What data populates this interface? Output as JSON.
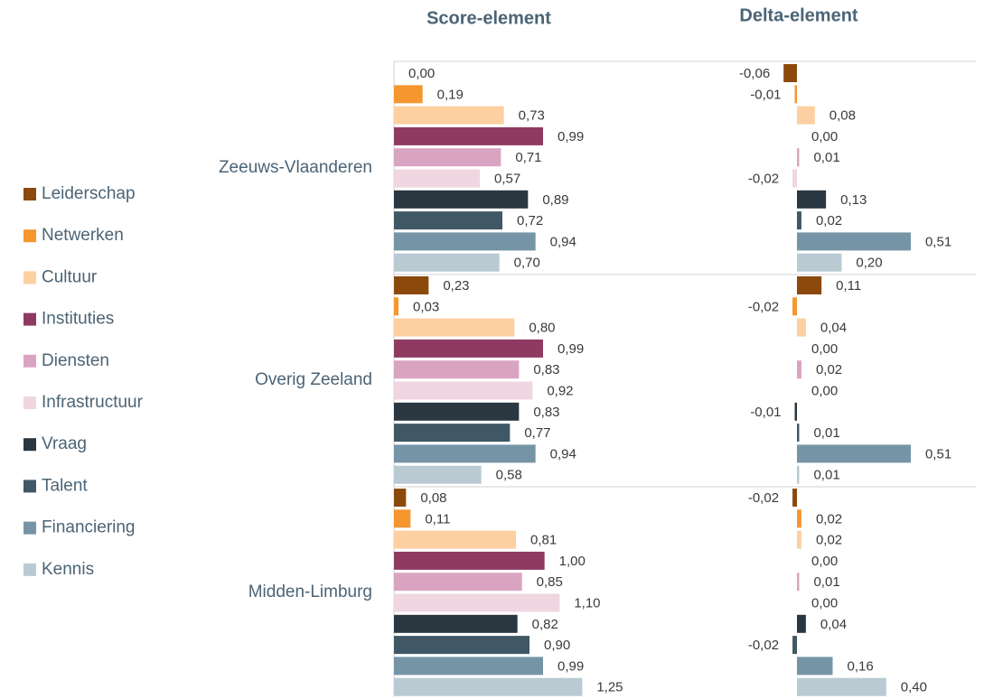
{
  "chart_data": [
    {
      "type": "bar",
      "title": "Score-element",
      "orientation": "horizontal",
      "categories": [
        "Zeeuws-Vlaanderen",
        "Overig Zeeland",
        "Midden-Limburg"
      ],
      "xlim": [
        0,
        1.5
      ],
      "series": [
        {
          "name": "Leiderschap",
          "color": "#8b4a0c",
          "values": [
            0.0,
            0.23,
            0.08
          ],
          "value_labels": [
            "0,00",
            "0,23",
            "0,08"
          ]
        },
        {
          "name": "Netwerken",
          "color": "#f5962f",
          "values": [
            0.19,
            0.03,
            0.11
          ],
          "value_labels": [
            "0,19",
            "0,03",
            "0,11"
          ]
        },
        {
          "name": "Cultuur",
          "color": "#fdd0a2",
          "values": [
            0.73,
            0.8,
            0.81
          ],
          "value_labels": [
            "0,73",
            "0,80",
            "0,81"
          ]
        },
        {
          "name": "Instituties",
          "color": "#8e3a62",
          "values": [
            0.99,
            0.99,
            1.0
          ],
          "value_labels": [
            "0,99",
            "0,99",
            "1,00"
          ]
        },
        {
          "name": "Diensten",
          "color": "#d9a4c2",
          "values": [
            0.71,
            0.83,
            0.85
          ],
          "value_labels": [
            "0,71",
            "0,83",
            "0,85"
          ]
        },
        {
          "name": "Infrastructuur",
          "color": "#f0d6e0",
          "values": [
            0.57,
            0.92,
            1.1
          ],
          "value_labels": [
            "0,57",
            "0,92",
            "1,10"
          ]
        },
        {
          "name": "Vraag",
          "color": "#2a3640",
          "values": [
            0.89,
            0.83,
            0.82
          ],
          "value_labels": [
            "0,89",
            "0,83",
            "0,82"
          ]
        },
        {
          "name": "Talent",
          "color": "#405866",
          "values": [
            0.72,
            0.77,
            0.9
          ],
          "value_labels": [
            "0,72",
            "0,77",
            "0,90"
          ]
        },
        {
          "name": "Financiering",
          "color": "#7595a6",
          "values": [
            0.94,
            0.94,
            0.99
          ],
          "value_labels": [
            "0,94",
            "0,94",
            "0,99"
          ]
        },
        {
          "name": "Kennis",
          "color": "#b9cad3",
          "values": [
            0.7,
            0.58,
            1.25
          ],
          "value_labels": [
            "0,70",
            "0,58",
            "1,25"
          ]
        }
      ]
    },
    {
      "type": "bar",
      "title": "Delta-element",
      "orientation": "horizontal",
      "xlim": [
        -0.2,
        0.8
      ],
      "series": [
        {
          "values": [
            -0.06,
            0.11,
            -0.02
          ],
          "value_labels": [
            "-0,06",
            "0,11",
            "-0,02"
          ]
        },
        {
          "values": [
            -0.01,
            -0.02,
            0.02
          ],
          "value_labels": [
            "-0,01",
            "-0,02",
            "0,02"
          ]
        },
        {
          "values": [
            0.08,
            0.04,
            0.02
          ],
          "value_labels": [
            "0,08",
            "0,04",
            "0,02"
          ]
        },
        {
          "values": [
            0.0,
            0.0,
            0.0
          ],
          "value_labels": [
            "0,00",
            "0,00",
            "0,00"
          ]
        },
        {
          "values": [
            0.01,
            0.02,
            0.01
          ],
          "value_labels": [
            "0,01",
            "0,02",
            "0,01"
          ]
        },
        {
          "values": [
            -0.02,
            0.0,
            0.0
          ],
          "value_labels": [
            "-0,02",
            "0,00",
            "0,00"
          ]
        },
        {
          "values": [
            0.13,
            -0.01,
            0.04
          ],
          "value_labels": [
            "0,13",
            "-0,01",
            "0,04"
          ]
        },
        {
          "values": [
            0.02,
            0.01,
            -0.02
          ],
          "value_labels": [
            "0,02",
            "0,01",
            "-0,02"
          ]
        },
        {
          "values": [
            0.51,
            0.51,
            0.16
          ],
          "value_labels": [
            "0,51",
            "0,51",
            "0,16"
          ]
        },
        {
          "values": [
            0.2,
            0.01,
            0.4
          ],
          "value_labels": [
            "0,20",
            "0,01",
            "0,40"
          ]
        }
      ]
    }
  ]
}
